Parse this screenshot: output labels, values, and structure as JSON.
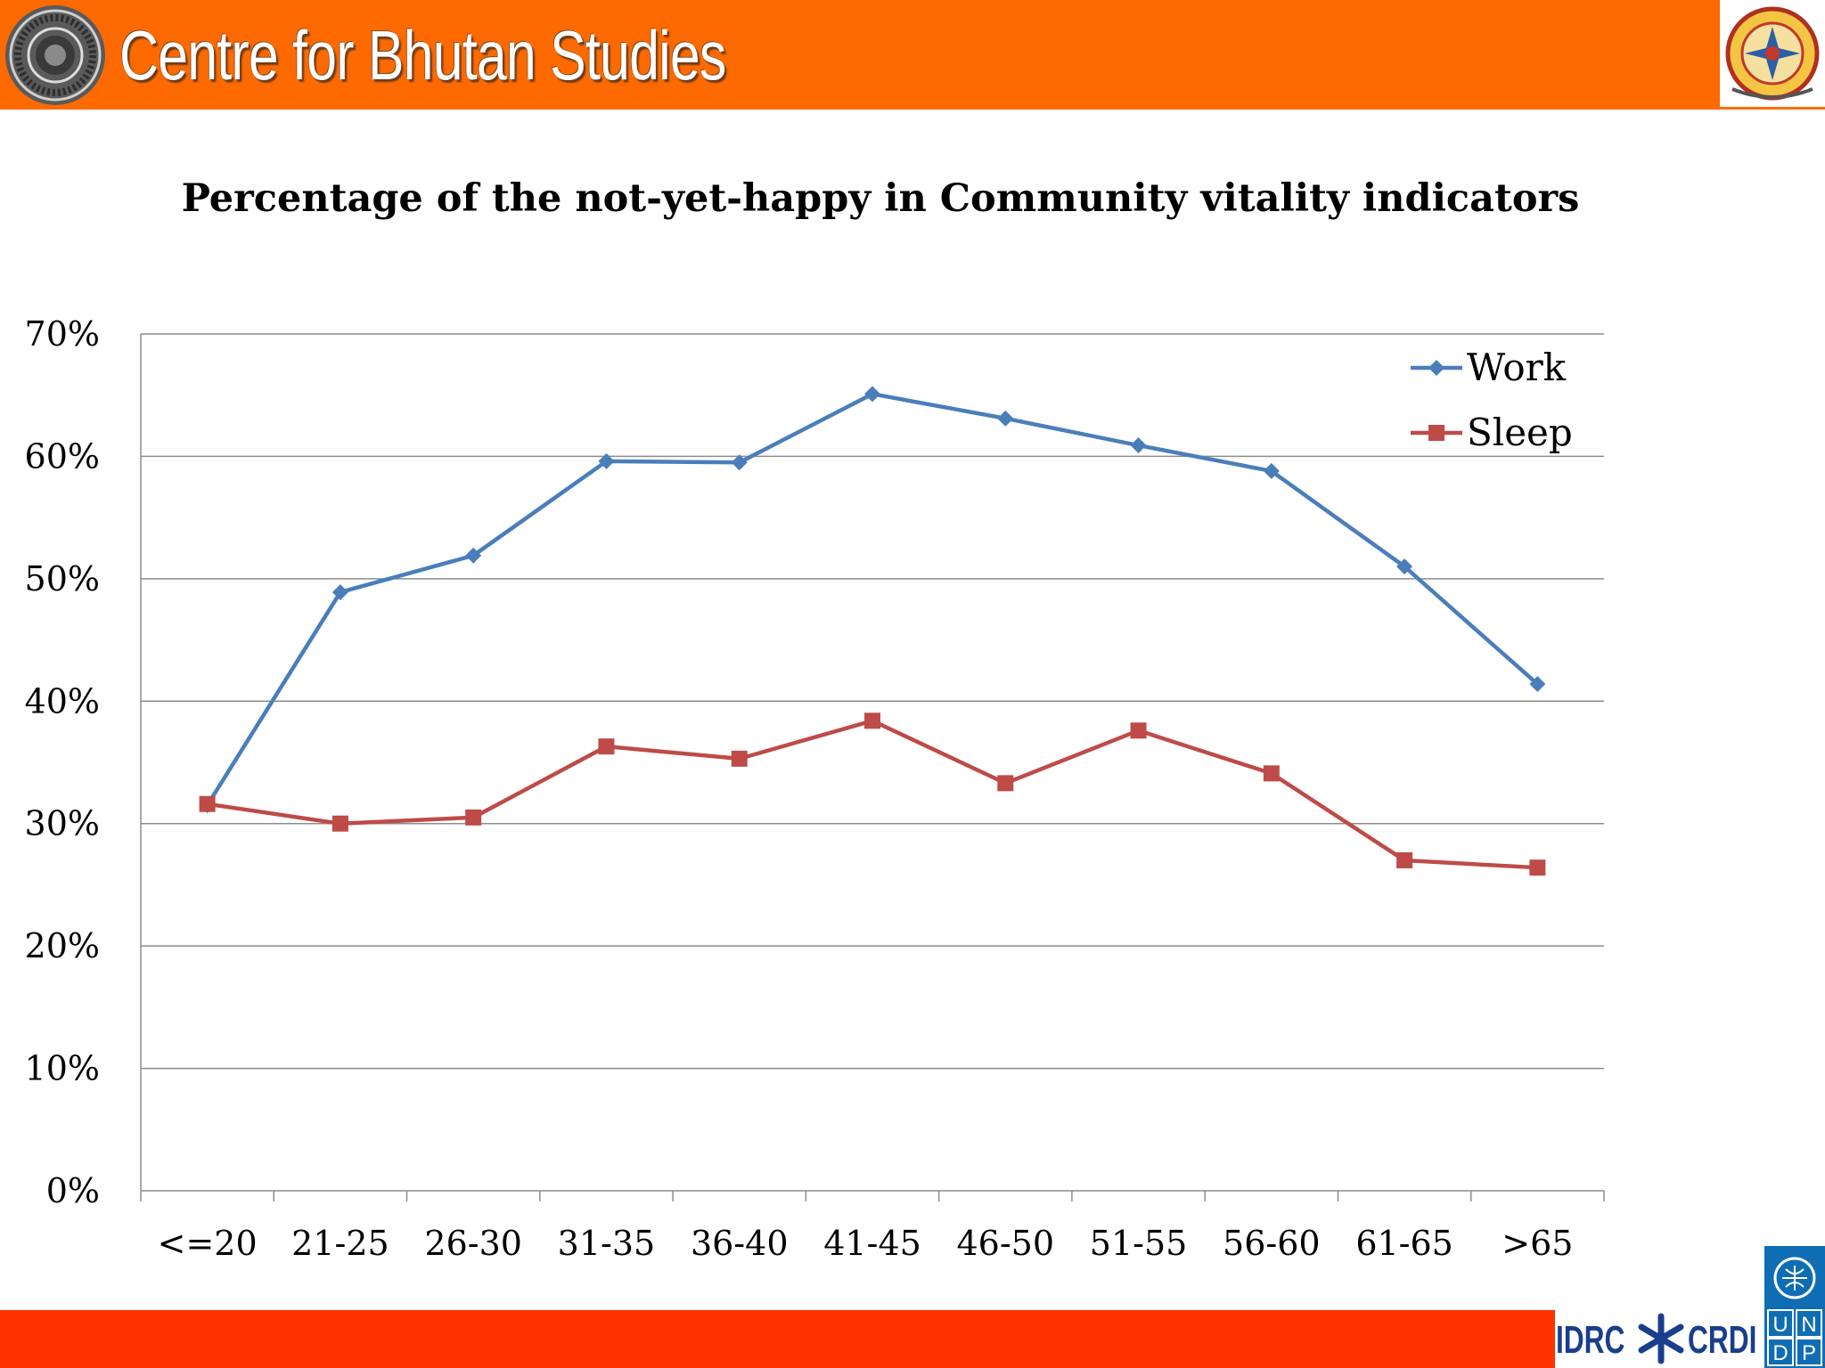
{
  "header": {
    "org_name": "Centre for Bhutan Studies",
    "color": "#ff6a00"
  },
  "footer": {
    "color": "#ff3300",
    "partner_left": "IDRC",
    "partner_right": "CRDI",
    "undp_letters": [
      "U",
      "N",
      "D",
      "P"
    ]
  },
  "chart_data": {
    "type": "line",
    "title": "Percentage of the not-yet-happy in Community vitality indicators",
    "categories": [
      "<=20",
      "21-25",
      "26-30",
      "31-35",
      "36-40",
      "41-45",
      "46-50",
      "51-55",
      "56-60",
      "61-65",
      ">65"
    ],
    "series": [
      {
        "name": "Work",
        "color": "#4a7ebb",
        "marker": "diamond",
        "values": [
          31.5,
          48.9,
          51.9,
          59.6,
          59.5,
          65.1,
          63.1,
          60.9,
          58.8,
          51.0,
          41.4
        ]
      },
      {
        "name": "Sleep",
        "color": "#be4b48",
        "marker": "square",
        "values": [
          31.6,
          30.0,
          30.5,
          36.3,
          35.3,
          38.4,
          33.3,
          37.6,
          34.1,
          27.0,
          26.4
        ]
      }
    ],
    "ylim": [
      0,
      70
    ],
    "yticks": [
      "0%",
      "10%",
      "20%",
      "30%",
      "40%",
      "50%",
      "60%",
      "70%"
    ],
    "xlabel": "",
    "ylabel": "",
    "grid": true,
    "legend": "top-right"
  }
}
